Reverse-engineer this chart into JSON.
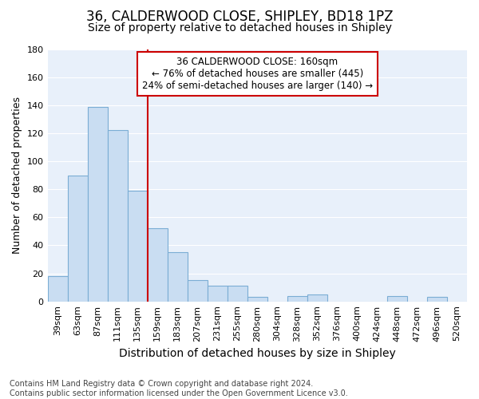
{
  "title1": "36, CALDERWOOD CLOSE, SHIPLEY, BD18 1PZ",
  "title2": "Size of property relative to detached houses in Shipley",
  "xlabel": "Distribution of detached houses by size in Shipley",
  "ylabel": "Number of detached properties",
  "footnote": "Contains HM Land Registry data © Crown copyright and database right 2024.\nContains public sector information licensed under the Open Government Licence v3.0.",
  "annotation_line1": "36 CALDERWOOD CLOSE: 160sqm",
  "annotation_line2": "← 76% of detached houses are smaller (445)",
  "annotation_line3": "24% of semi-detached houses are larger (140) →",
  "categories": [
    "39sqm",
    "63sqm",
    "87sqm",
    "111sqm",
    "135sqm",
    "159sqm",
    "183sqm",
    "207sqm",
    "231sqm",
    "255sqm",
    "280sqm",
    "304sqm",
    "328sqm",
    "352sqm",
    "376sqm",
    "400sqm",
    "424sqm",
    "448sqm",
    "472sqm",
    "496sqm",
    "520sqm"
  ],
  "values": [
    18,
    90,
    139,
    122,
    79,
    52,
    35,
    15,
    11,
    11,
    3,
    0,
    4,
    5,
    0,
    0,
    0,
    4,
    0,
    3,
    0
  ],
  "bar_color": "#c9ddf2",
  "bar_edge_color": "#7badd4",
  "marker_color": "#cc0000",
  "marker_idx": 5,
  "ylim": [
    0,
    180
  ],
  "yticks": [
    0,
    20,
    40,
    60,
    80,
    100,
    120,
    140,
    160,
    180
  ],
  "bg_color": "#e8f0fa",
  "title1_fontsize": 12,
  "title2_fontsize": 10,
  "xlabel_fontsize": 10,
  "ylabel_fontsize": 9,
  "annot_fontsize": 8.5,
  "footnote_fontsize": 7,
  "tick_fontsize": 8
}
